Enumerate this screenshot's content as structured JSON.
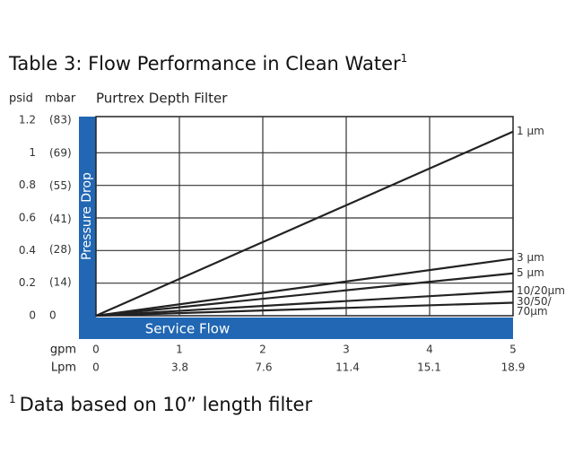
{
  "chart_data": {
    "type": "line",
    "title": "Table 3: Flow Performance in Clean Water",
    "title_note": "1",
    "subtitle": "Purtrex Depth Filter",
    "x_label": "Service Flow",
    "y_label": "Pressure Drop",
    "x_unit": "gpm",
    "x2_unit": "Lpm",
    "y_unit": "psid",
    "y2_unit": "mbar",
    "x": [
      0,
      5
    ],
    "series": [
      {
        "name": "1 µm",
        "color": "#222222",
        "values": [
          0,
          1.13
        ]
      },
      {
        "name": "3 µm",
        "color": "#222222",
        "values": [
          0,
          0.35
        ]
      },
      {
        "name": "5 µm",
        "color": "#222222",
        "values": [
          0,
          0.26
        ]
      },
      {
        "name": "10/20µm",
        "color": "#222222",
        "values": [
          0,
          0.15
        ]
      },
      {
        "name": "30/50/\n70µm",
        "color": "#222222",
        "values": [
          0,
          0.08
        ]
      }
    ],
    "xlim": [
      0,
      5
    ],
    "xticks": [
      0,
      1,
      2,
      3,
      4,
      5
    ],
    "x2lim": [
      0,
      18.9
    ],
    "x2ticks": [
      0,
      3.8,
      7.6,
      11.4,
      15.1,
      18.9
    ],
    "ylim": [
      0,
      1.2
    ],
    "yticks": [
      0,
      0.2,
      0.4,
      0.6,
      0.8,
      1.0,
      1.2
    ],
    "y2lim": [
      0,
      83
    ],
    "y2ticks": [
      0,
      {
        "value": 14,
        "label": "(14)"
      },
      {
        "value": 28,
        "label": "(28)"
      },
      {
        "value": 41,
        "label": "(41)"
      },
      {
        "value": 55,
        "label": "(55)"
      },
      {
        "value": 69,
        "label": "(69)"
      },
      {
        "value": 83,
        "label": "(83)"
      }
    ],
    "grid": true,
    "band_color": "#2167b3",
    "footnote_marker": "1",
    "footnote": "Data based on 10” length filter"
  }
}
